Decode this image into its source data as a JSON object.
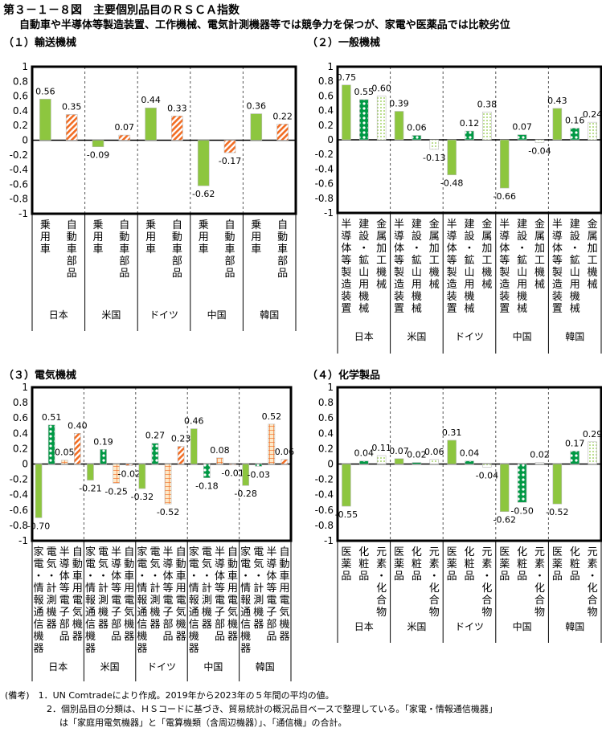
{
  "title": "第３－１－８図　主要個別品目のＲＳＣＡ指数",
  "subtitle": "自動車や半導体等製造装置、工作機械、電気計測機器等では競争力を保つが、家電や医薬品では比較劣位",
  "colors": {
    "solid_green": "#8dc63f",
    "dot_green": "#009944",
    "orange": "#f26c22",
    "light": "#e8f0d8"
  },
  "notes": [
    "(備考)　1．UN Comtradeにより作成。2019年から2023年の５年間の平均の値。",
    "2．個別品目の分類は、ＨＳコードに基づき、貿易統計の概況品目ベースで整理している。「家電・情報通信機器」",
    "は「家庭用電気機器」と「電算機類（含周辺機器）」、「通信機」の合計。"
  ],
  "chart_data": [
    {
      "type": "bar",
      "title": "（１）輸送機械",
      "ylim": [
        -1,
        1
      ],
      "yticks": [
        "1",
        "0.8",
        "0.6",
        "0.4",
        "0.2",
        "0",
        "-0.2",
        "-0.4",
        "-0.6",
        "-0.8",
        "-1"
      ],
      "countries": [
        "日本",
        "米国",
        "ドイツ",
        "中国",
        "韓国"
      ],
      "series": [
        {
          "name": "乗用車",
          "pattern": "solid",
          "values": [
            0.56,
            -0.09,
            0.44,
            -0.62,
            0.36
          ]
        },
        {
          "name": "自動車部品",
          "pattern": "stripe",
          "values": [
            0.35,
            0.07,
            0.33,
            -0.17,
            0.22
          ]
        }
      ]
    },
    {
      "type": "bar",
      "title": "（２）一般機械",
      "ylim": [
        -1,
        1
      ],
      "yticks": [
        "1",
        "0.8",
        "0.6",
        "0.4",
        "0.2",
        "0",
        "-0.2",
        "-0.4",
        "-0.6",
        "-0.8",
        "-1"
      ],
      "countries": [
        "日本",
        "米国",
        "ドイツ",
        "中国",
        "韓国"
      ],
      "series": [
        {
          "name": "半導体等製造装置",
          "pattern": "solid",
          "values": [
            0.75,
            0.39,
            -0.48,
            -0.66,
            0.43
          ]
        },
        {
          "name": "建設・鉱山用機械",
          "pattern": "dots",
          "values": [
            0.55,
            0.06,
            0.12,
            0.07,
            0.16
          ]
        },
        {
          "name": "金属加工機械",
          "pattern": "light",
          "values": [
            0.6,
            -0.13,
            0.38,
            -0.04,
            0.24
          ]
        }
      ]
    },
    {
      "type": "bar",
      "title": "（３）電気機械",
      "ylim": [
        -1,
        1
      ],
      "yticks": [
        "1",
        "0.8",
        "0.6",
        "0.4",
        "0.2",
        "0",
        "-0.2",
        "-0.4",
        "-0.6",
        "-0.8",
        "-1"
      ],
      "countries": [
        "日本",
        "米国",
        "ドイツ",
        "中国",
        "韓国"
      ],
      "series": [
        {
          "name": "家電・情報通信機器",
          "pattern": "solid",
          "values": [
            -0.7,
            -0.21,
            -0.32,
            0.46,
            -0.28
          ]
        },
        {
          "name": "電気・計測機器",
          "pattern": "dots",
          "values": [
            0.51,
            0.19,
            0.27,
            -0.18,
            -0.03
          ]
        },
        {
          "name": "半導体等電子部品",
          "pattern": "grid",
          "values": [
            0.05,
            -0.25,
            -0.52,
            0.08,
            0.52
          ]
        },
        {
          "name": "自動車用電気機器",
          "pattern": "stripe",
          "values": [
            0.4,
            -0.02,
            0.23,
            -0.01,
            0.06
          ]
        }
      ]
    },
    {
      "type": "bar",
      "title": "（４）化学製品",
      "ylim": [
        -1,
        1
      ],
      "yticks": [
        "1",
        "0.8",
        "0.6",
        "0.4",
        "0.2",
        "0",
        "-0.2",
        "-0.4",
        "-0.6",
        "-0.8",
        "-1"
      ],
      "countries": [
        "日本",
        "米国",
        "ドイツ",
        "中国",
        "韓国"
      ],
      "series": [
        {
          "name": "医薬品",
          "pattern": "solid",
          "values": [
            -0.55,
            0.07,
            0.31,
            -0.62,
            -0.52
          ]
        },
        {
          "name": "化粧品",
          "pattern": "dots",
          "values": [
            0.04,
            0.02,
            0.04,
            -0.5,
            0.17
          ]
        },
        {
          "name": "元素・化合物",
          "pattern": "light",
          "values": [
            0.11,
            0.06,
            -0.04,
            0.02,
            0.29
          ]
        }
      ]
    }
  ]
}
